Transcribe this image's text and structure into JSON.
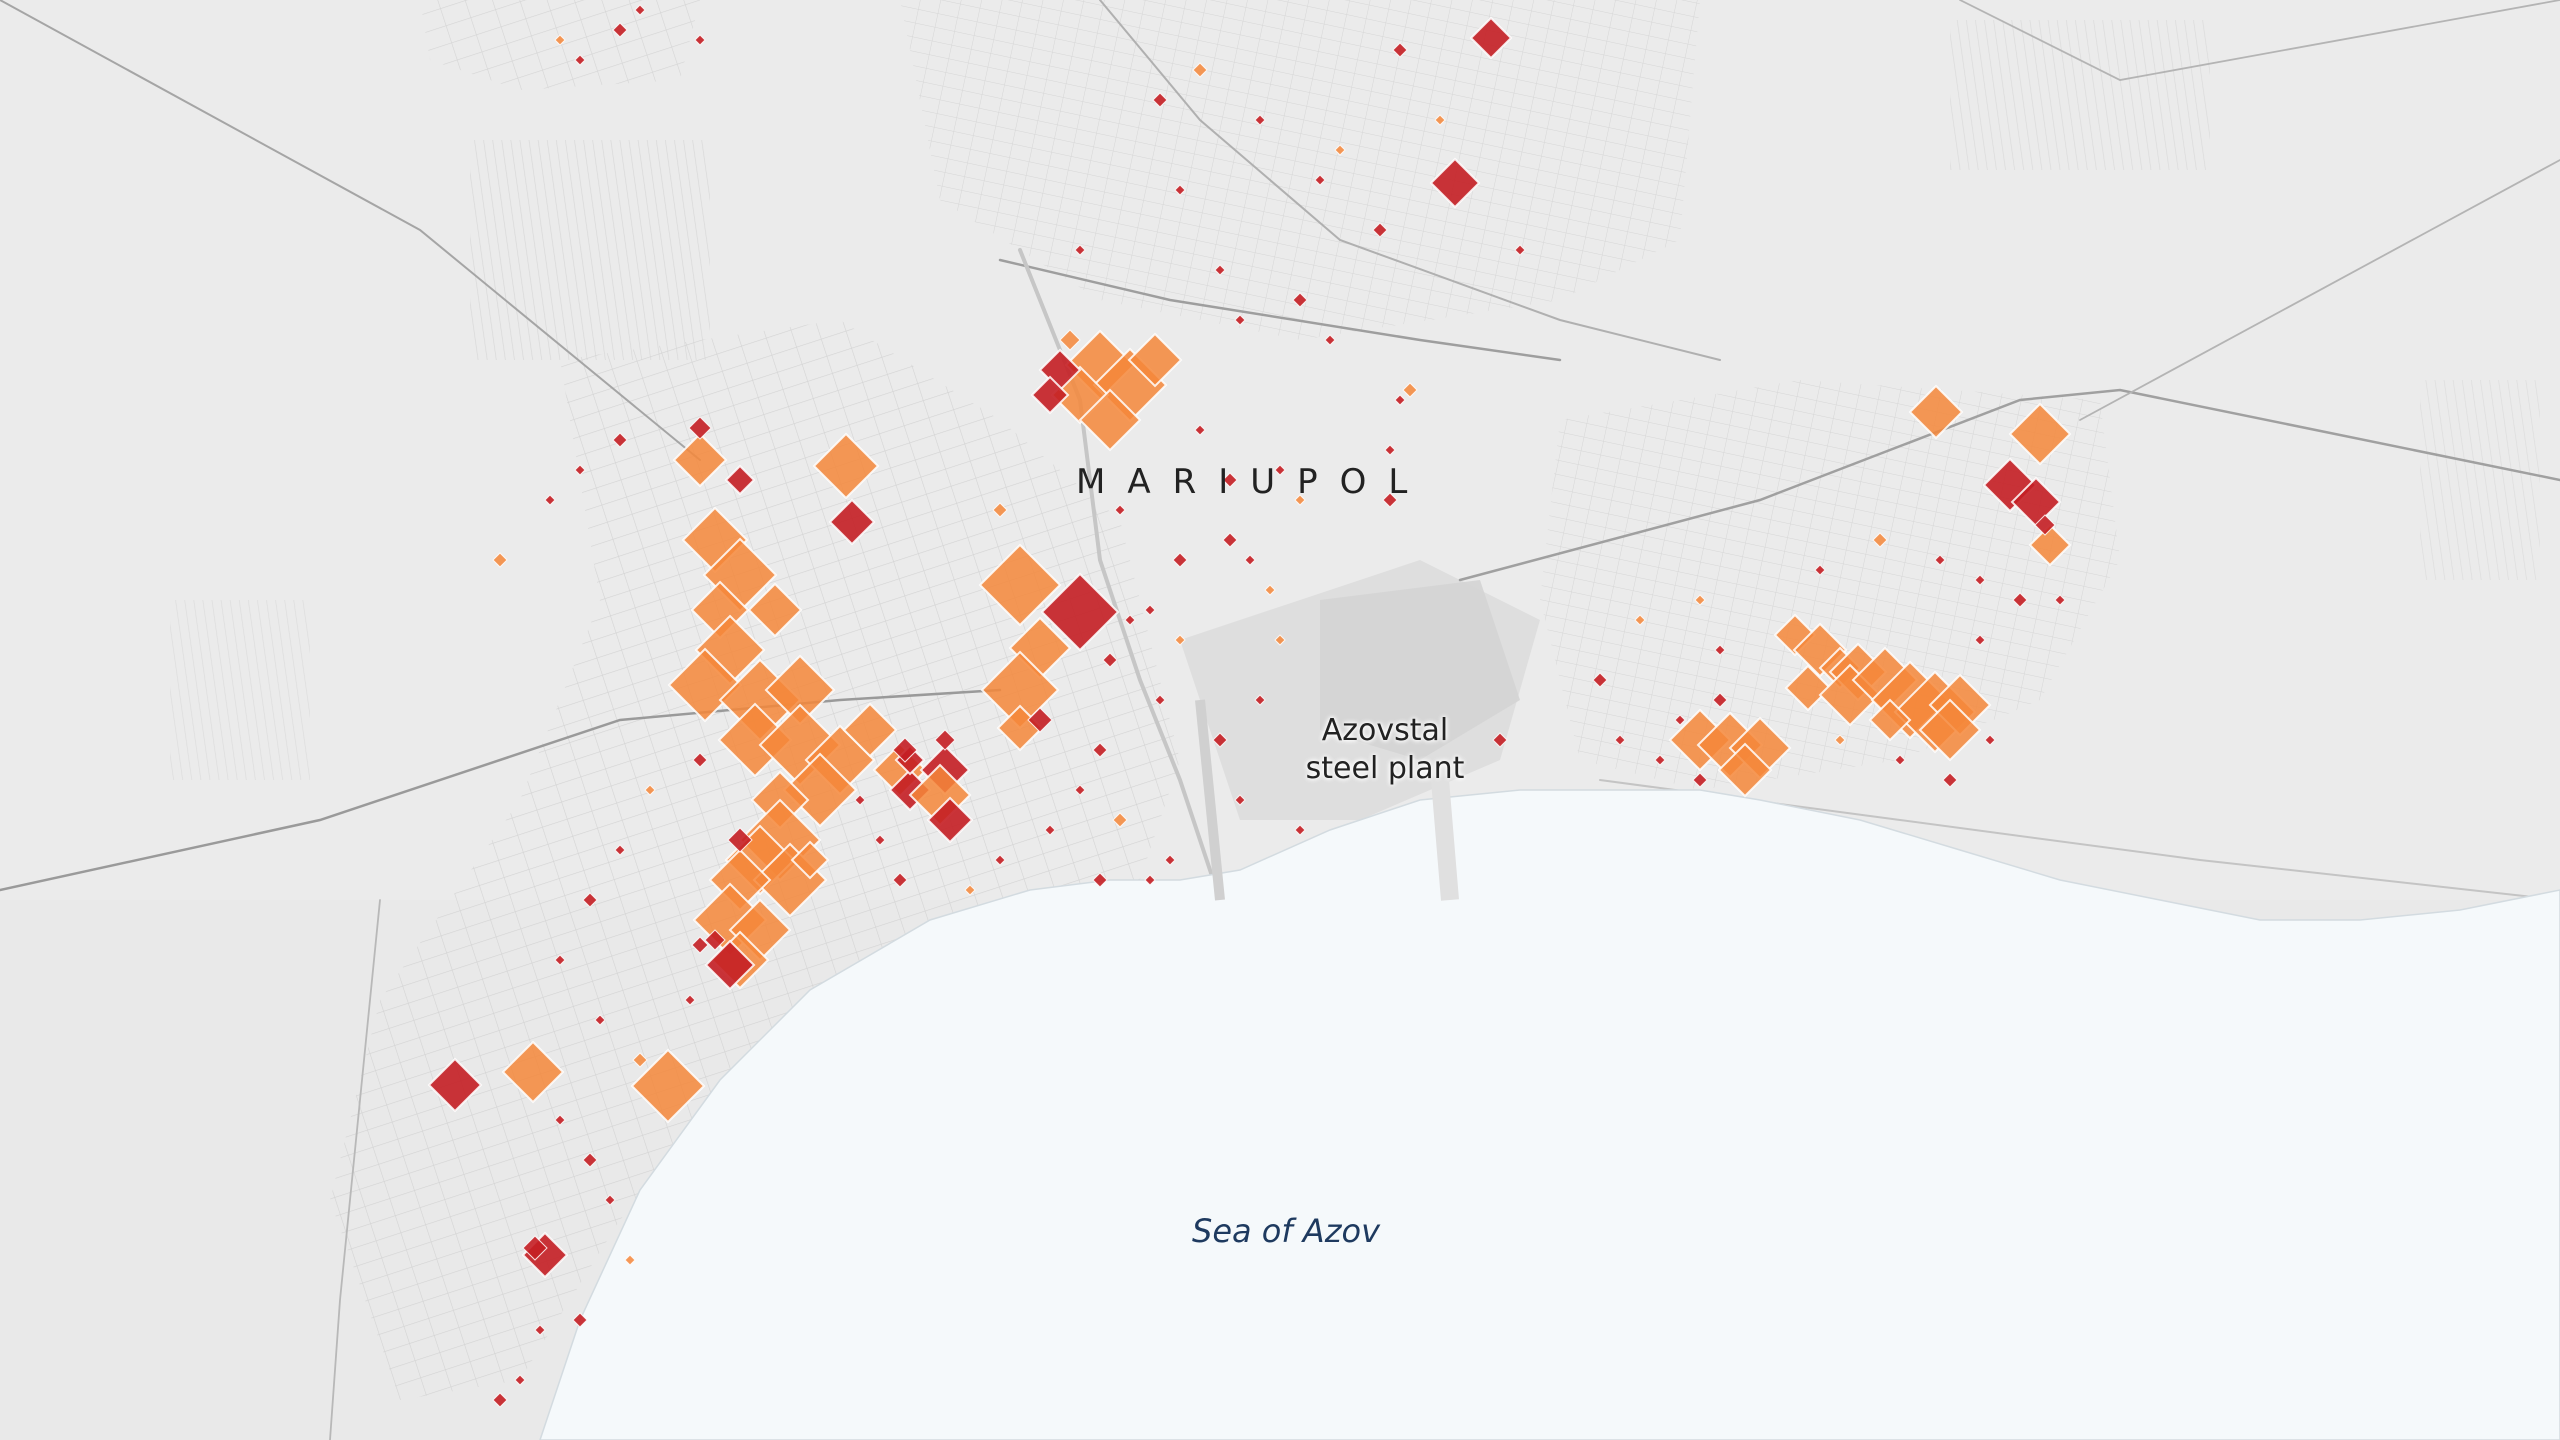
{
  "labels": {
    "city": "MARIUPOL",
    "landmark_line1": "Azovstal",
    "landmark_line2": "steel plant",
    "sea": "Sea of Azov"
  },
  "colors": {
    "land": "#e8e8e8",
    "sea": "#f5f9fb",
    "streets": "#cfcfcf",
    "damage_orange": "#f5873a",
    "damage_dark_red": "#c41e24",
    "marker_outline": "#ffffff"
  },
  "damage_categories": [
    {
      "name": "orange",
      "color": "#f5873a"
    },
    {
      "name": "dark-red",
      "color": "#c41e24"
    }
  ]
}
